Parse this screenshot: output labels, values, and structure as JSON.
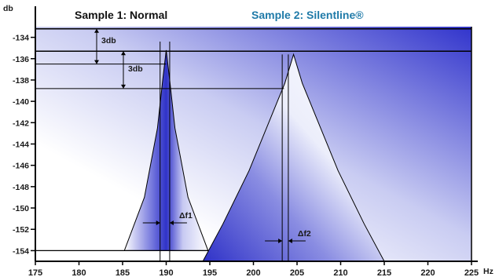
{
  "colors": {
    "plot_bg_start": "#d3d6f4",
    "plot_bg_end": "#3134cc",
    "peak_fill_dark": "#2f32c8",
    "peak_fill_light": "#ffffff",
    "title_1_color": "#111111",
    "title_2_color": "#1f7aa8",
    "line_color": "#000000"
  },
  "chart_data": {
    "type": "line",
    "title_1": "Sample 1: Normal",
    "title_2": "Sample 2: Silentline®",
    "y_unit": "db",
    "x_unit": "Hz",
    "xlim": [
      175,
      225
    ],
    "ylim": [
      -155,
      -133
    ],
    "x_ticks": [
      175,
      180,
      185,
      190,
      195,
      200,
      205,
      210,
      215,
      220,
      225
    ],
    "y_ticks": [
      -134,
      -136,
      -138,
      -140,
      -142,
      -144,
      -146,
      -148,
      -150,
      -152,
      -154
    ],
    "series": [
      {
        "name": "Sample 1: Normal",
        "peak_x": 190,
        "peak_y": -135.2,
        "base_y": -154,
        "x": [
          185.2,
          187.5,
          189.0,
          189.6,
          190.0,
          190.4,
          191.0,
          192.5,
          194.8
        ],
        "y": [
          -154,
          -149.0,
          -142.5,
          -138.0,
          -135.2,
          -138.0,
          -142.5,
          -149.0,
          -154
        ],
        "bandwidth_lines_x": [
          189.3,
          190.4
        ],
        "bandwidth_label": "Δf1"
      },
      {
        "name": "Sample 2: Silentline®",
        "peak_x": 204.6,
        "peak_y": -135.6,
        "base_y": -155,
        "x": [
          194.2,
          196.5,
          199.5,
          202.0,
          203.6,
          204.6,
          205.6,
          207.2,
          209.7,
          212.7,
          215.0
        ],
        "y": [
          -155,
          -151.5,
          -146.5,
          -141.5,
          -138.3,
          -135.6,
          -138.3,
          -141.5,
          -146.5,
          -151.5,
          -155
        ],
        "bandwidth_lines_x": [
          203.3,
          204.0
        ],
        "bandwidth_label": "Δf2"
      }
    ],
    "reference_lines_y": [
      -133.2,
      -135.3,
      -136.5,
      -138.8
    ],
    "annotations": [
      {
        "text": "3db",
        "from_y": -133.2,
        "to_y": -136.5
      },
      {
        "text": "3db",
        "from_y": -135.3,
        "to_y": -138.8
      }
    ],
    "grid": false,
    "legend": "top"
  }
}
